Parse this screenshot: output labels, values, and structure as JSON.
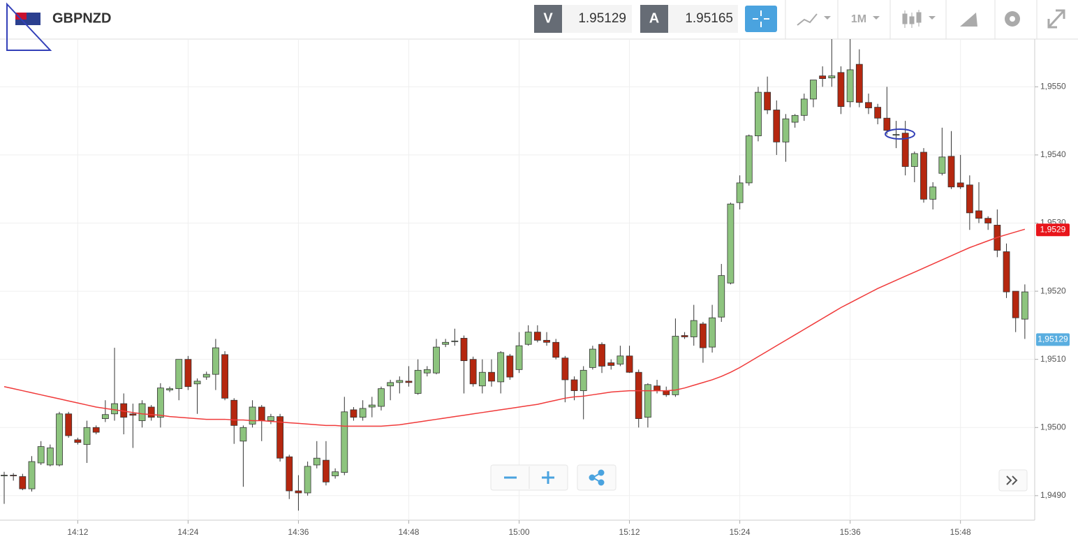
{
  "header": {
    "symbol": "GBPNZD",
    "bid_label": "V",
    "bid": "1.95129",
    "ask_label": "A",
    "ask": "1.95165",
    "timeframe": "1M"
  },
  "chart_data": {
    "type": "candlestick",
    "categories": [
      null,
      null,
      null,
      null,
      null,
      null,
      null,
      null,
      "14:12",
      null,
      null,
      null,
      null,
      null,
      null,
      null,
      null,
      null,
      null,
      null,
      "14:24",
      null,
      null,
      null,
      null,
      null,
      null,
      null,
      null,
      null,
      null,
      null,
      "14:36",
      null,
      null,
      null,
      null,
      null,
      null,
      null,
      null,
      null,
      null,
      null,
      "14:48",
      null,
      null,
      null,
      null,
      null,
      null,
      null,
      null,
      null,
      null,
      null,
      "15:00",
      null,
      null,
      null,
      null,
      null,
      null,
      null,
      null,
      null,
      null,
      null,
      "15:12",
      null,
      null,
      null,
      null,
      null,
      null,
      null,
      null,
      null,
      null,
      null,
      "15:24",
      null,
      null,
      null,
      null,
      null,
      null,
      null,
      null,
      null,
      null,
      null,
      "15:36",
      null,
      null,
      null,
      null,
      null,
      null,
      null,
      null,
      null,
      null,
      null,
      "15:48",
      null,
      null,
      null,
      null,
      null,
      null,
      null
    ],
    "open": [
      1.9493,
      1.9493,
      1.94928,
      1.9491,
      1.94948,
      1.94945,
      1.94945,
      1.9502,
      1.94982,
      1.94975,
      1.95,
      1.95013,
      1.9502,
      1.95035,
      1.9502,
      1.9501,
      1.9503,
      1.95015,
      1.95055,
      1.95057,
      1.951,
      1.95064,
      1.95074,
      1.95078,
      1.95107,
      1.9504,
      1.9498,
      1.95005,
      1.9503,
      1.9501,
      1.95016,
      1.94957,
      1.94907,
      1.94904,
      1.94945,
      1.94952,
      1.94929,
      1.94934,
      1.95026,
      1.95015,
      1.9503,
      1.95031,
      1.95061,
      1.95066,
      1.95068,
      1.9505,
      1.9508,
      1.9508,
      1.95122,
      1.95126,
      1.95131,
      1.951,
      1.95061,
      1.95081,
      1.95067,
      1.95105,
      1.95085,
      1.95122,
      1.9514,
      1.95128,
      1.95125,
      1.95102,
      1.9507,
      1.95054,
      1.95088,
      1.95122,
      1.95095,
      1.95093,
      1.95105,
      1.95081,
      1.95015,
      1.95061,
      1.95054,
      1.95048,
      1.95135,
      1.95133,
      1.95152,
      1.95118,
      1.95162,
      1.95212,
      1.9533,
      1.95359,
      1.95428,
      1.95492,
      1.95466,
      1.95419,
      1.95448,
      1.95458,
      1.95482,
      1.95516,
      1.95513,
      1.95521,
      1.95478,
      1.95533,
      1.95477,
      1.9547,
      1.95454,
      1.9543,
      1.95432,
      1.95383,
      1.95404,
      1.95335,
      1.95373,
      1.95398,
      1.95359,
      1.95356,
      1.95318,
      1.95307,
      1.95297,
      1.95258,
      1.952,
      1.95159
    ],
    "high": [
      1.94935,
      1.94933,
      1.94932,
      1.94958,
      1.9498,
      1.94975,
      1.95023,
      1.95023,
      1.94985,
      1.9501,
      1.95003,
      1.9504,
      1.95117,
      1.9505,
      1.95035,
      1.9504,
      1.95033,
      1.95065,
      1.9506,
      1.951,
      1.95105,
      1.95072,
      1.95082,
      1.9513,
      1.95112,
      1.95043,
      1.95003,
      1.9504,
      1.95033,
      1.9502,
      1.9502,
      1.9496,
      1.9493,
      1.9495,
      1.9498,
      1.9498,
      1.9494,
      1.95045,
      1.9503,
      1.9504,
      1.95045,
      1.9506,
      1.9507,
      1.95075,
      1.9509,
      1.951,
      1.9509,
      1.9513,
      1.9513,
      1.95145,
      1.95135,
      1.95104,
      1.951,
      1.951,
      1.95112,
      1.95108,
      1.9514,
      1.9515,
      1.9515,
      1.9514,
      1.9513,
      1.95105,
      1.95075,
      1.9509,
      1.9512,
      1.95125,
      1.951,
      1.9512,
      1.9512,
      1.95085,
      1.95065,
      1.9507,
      1.9506,
      1.9516,
      1.9514,
      1.9518,
      1.95155,
      1.9518,
      1.9524,
      1.9533,
      1.9537,
      1.9543,
      1.955,
      1.95515,
      1.9548,
      1.9546,
      1.9546,
      1.9549,
      1.9551,
      1.9553,
      1.9557,
      1.9553,
      1.9557,
      1.95555,
      1.9549,
      1.95475,
      1.955,
      1.9545,
      1.9545,
      1.95405,
      1.9541,
      1.9536,
      1.9544,
      1.95435,
      1.954,
      1.9537,
      1.9536,
      1.9531,
      1.9532,
      1.9527,
      1.952,
      1.9521
    ],
    "low": [
      1.94888,
      1.94922,
      1.94908,
      1.94906,
      1.94945,
      1.94943,
      1.94943,
      1.94985,
      1.94975,
      1.94948,
      1.9499,
      1.95008,
      1.9501,
      1.9499,
      1.9497,
      1.95,
      1.9501,
      1.95,
      1.95052,
      1.9504,
      1.95055,
      1.9502,
      1.9507,
      1.95055,
      1.9504,
      1.94976,
      1.94913,
      1.95,
      1.9498,
      1.95005,
      1.9495,
      1.94895,
      1.94878,
      1.949,
      1.9494,
      1.94915,
      1.94925,
      1.9493,
      1.9501,
      1.9501,
      1.95015,
      1.95025,
      1.9504,
      1.9505,
      1.9506,
      1.95048,
      1.95075,
      1.95078,
      1.95118,
      1.9512,
      1.9505,
      1.9506,
      1.9505,
      1.9506,
      1.9505,
      1.9507,
      1.9508,
      1.9512,
      1.95125,
      1.9512,
      1.951,
      1.95037,
      1.9504,
      1.95012,
      1.95085,
      1.9508,
      1.95085,
      1.9509,
      1.9508,
      1.95,
      1.95,
      1.9505,
      1.95045,
      1.95045,
      1.9513,
      1.9512,
      1.95095,
      1.9511,
      1.95155,
      1.9521,
      1.9532,
      1.95355,
      1.9542,
      1.9546,
      1.954,
      1.9539,
      1.9544,
      1.9545,
      1.9547,
      1.955,
      1.955,
      1.9546,
      1.9547,
      1.9547,
      1.9546,
      1.95445,
      1.9543,
      1.9541,
      1.9537,
      1.9536,
      1.9533,
      1.9532,
      1.9537,
      1.9535,
      1.9535,
      1.9529,
      1.953,
      1.9529,
      1.9525,
      1.9519,
      1.9514,
      1.9513
    ],
    "close": [
      1.9493,
      1.94929,
      1.9491,
      1.9495,
      1.94972,
      1.9497,
      1.9502,
      1.94988,
      1.94978,
      1.95,
      1.94993,
      1.95019,
      1.95035,
      1.95015,
      1.95018,
      1.95035,
      1.95015,
      1.95058,
      1.95057,
      1.951,
      1.9506,
      1.95068,
      1.95078,
      1.95117,
      1.95043,
      1.95003,
      1.95,
      1.9503,
      1.9501,
      1.95016,
      1.94955,
      1.94907,
      1.94904,
      1.94943,
      1.94955,
      1.9492,
      1.94935,
      1.95023,
      1.95015,
      1.95028,
      1.95033,
      1.95057,
      1.95066,
      1.95069,
      1.95066,
      1.95084,
      1.95085,
      1.95118,
      1.95125,
      1.95127,
      1.95098,
      1.95064,
      1.95081,
      1.95068,
      1.9511,
      1.95074,
      1.9512,
      1.9514,
      1.95128,
      1.95125,
      1.95103,
      1.9507,
      1.95054,
      1.95084,
      1.95115,
      1.9509,
      1.95091,
      1.95105,
      1.95081,
      1.95013,
      1.95063,
      1.95054,
      1.95048,
      1.95134,
      1.95133,
      1.95157,
      1.95117,
      1.95161,
      1.95223,
      1.95328,
      1.95359,
      1.95428,
      1.95492,
      1.95466,
      1.95419,
      1.95453,
      1.95458,
      1.95482,
      1.9551,
      1.95512,
      1.95516,
      1.95471,
      1.95525,
      1.95477,
      1.95469,
      1.95454,
      1.95436,
      1.9543,
      1.95383,
      1.95402,
      1.95335,
      1.95353,
      1.95397,
      1.95353,
      1.95353,
      1.95315,
      1.95307,
      1.953,
      1.9526,
      1.95199,
      1.95161,
      1.95199
    ],
    "up_color": "#8dc47e",
    "down_color": "#b5270f",
    "ma": {
      "color": "#f03a3a",
      "values": [
        1.9506,
        1.95057,
        1.95054,
        1.95051,
        1.95048,
        1.95045,
        1.95042,
        1.95039,
        1.95036,
        1.95033,
        1.9503,
        1.95028,
        1.95026,
        1.95024,
        1.95022,
        1.9502,
        1.95019,
        1.95018,
        1.95016,
        1.95015,
        1.95014,
        1.95013,
        1.95012,
        1.95012,
        1.95012,
        1.95011,
        1.95011,
        1.9501,
        1.9501,
        1.95009,
        1.95008,
        1.95007,
        1.95006,
        1.95005,
        1.95004,
        1.95003,
        1.95003,
        1.95002,
        1.95002,
        1.95002,
        1.95002,
        1.95002,
        1.95003,
        1.95004,
        1.95006,
        1.95008,
        1.9501,
        1.95012,
        1.95014,
        1.95016,
        1.95018,
        1.9502,
        1.95022,
        1.95024,
        1.95026,
        1.95028,
        1.9503,
        1.95032,
        1.95034,
        1.95037,
        1.9504,
        1.95043,
        1.95045,
        1.95046,
        1.95048,
        1.9505,
        1.95052,
        1.95053,
        1.95054,
        1.95054,
        1.95054,
        1.95054,
        1.95054,
        1.95055,
        1.95058,
        1.95062,
        1.95066,
        1.9507,
        1.95075,
        1.95081,
        1.95088,
        1.95096,
        1.95104,
        1.95112,
        1.9512,
        1.95128,
        1.95136,
        1.95144,
        1.95152,
        1.9516,
        1.95168,
        1.95176,
        1.95183,
        1.9519,
        1.95197,
        1.95204,
        1.9521,
        1.95216,
        1.95222,
        1.95228,
        1.95234,
        1.9524,
        1.95246,
        1.95252,
        1.95258,
        1.95264,
        1.95269,
        1.95274,
        1.95279,
        1.95283,
        1.95287,
        1.95291
      ]
    },
    "ylim": [
      1.94864,
      1.9557
    ],
    "yticks": [
      {
        "value": 1.949,
        "label": "1,9490"
      },
      {
        "value": 1.95,
        "label": "1,9500"
      },
      {
        "value": 1.951,
        "label": "1,9510"
      },
      {
        "value": 1.952,
        "label": "1,9520"
      },
      {
        "value": 1.953,
        "label": "1,9530"
      },
      {
        "value": 1.954,
        "label": "1,9540"
      },
      {
        "value": 1.955,
        "label": "1,9550"
      }
    ],
    "grid": true,
    "ma_tag": {
      "value": 1.9529,
      "label": "1,9529"
    },
    "price_tag": {
      "value": 1.95129,
      "label": "1,95129"
    }
  }
}
